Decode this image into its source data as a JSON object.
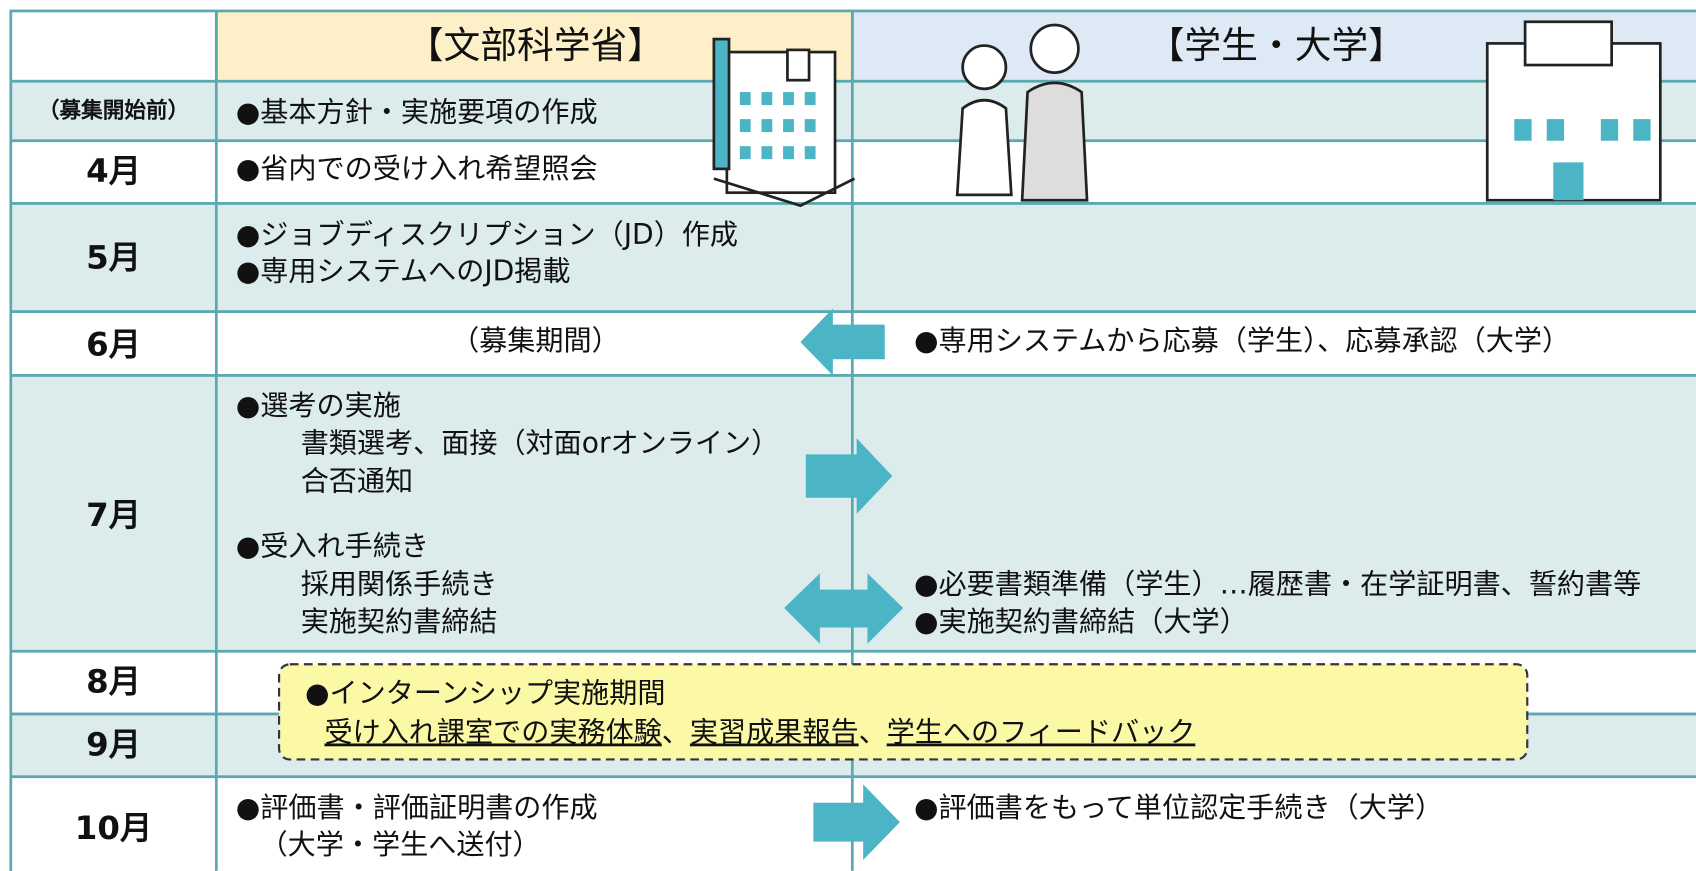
{
  "header": {
    "ministry": "【文部科学省】",
    "students": "【学生・大学】"
  },
  "rows": [
    {
      "month": "（募集開始前）",
      "ministry": [
        "●基本方針・実施要項の作成"
      ]
    },
    {
      "month": "4月",
      "ministry": [
        "●省内での受け入れ希望照会"
      ]
    },
    {
      "month": "5月",
      "ministry": [
        "●ジョブディスクリプション（JD）作成",
        "●専用システムへのJD掲載"
      ]
    },
    {
      "month": "6月",
      "ministry": [
        "（募集期間）"
      ],
      "students": [
        "●専用システムから応募（学生）、応募承認（大学）"
      ]
    },
    {
      "month": "7月",
      "ministry": [
        "●選考の実施",
        "書類選考、面接（対面orオンライン）",
        "合否通知",
        "●受入れ手続き",
        "採用関係手続き",
        "実施契約書締結"
      ],
      "students": [
        "●必要書類準備（学生）…履歴書・在学証明書、誓約書等",
        "●実施契約書締結（大学）"
      ]
    },
    {
      "month": "8月"
    },
    {
      "month": "9月"
    },
    {
      "month": "10月",
      "ministry": [
        "●評価書・評価証明書の作成",
        "（大学・学生へ送付）"
      ],
      "students": [
        "●評価書をもって単位認定手続き（大学）"
      ]
    }
  ],
  "internship": {
    "title": "●インターンシップ実施期間",
    "items": [
      "受け入れ課室での実務体験",
      "実習成果報告",
      "学生へのフィードバック"
    ],
    "separator": "、"
  }
}
